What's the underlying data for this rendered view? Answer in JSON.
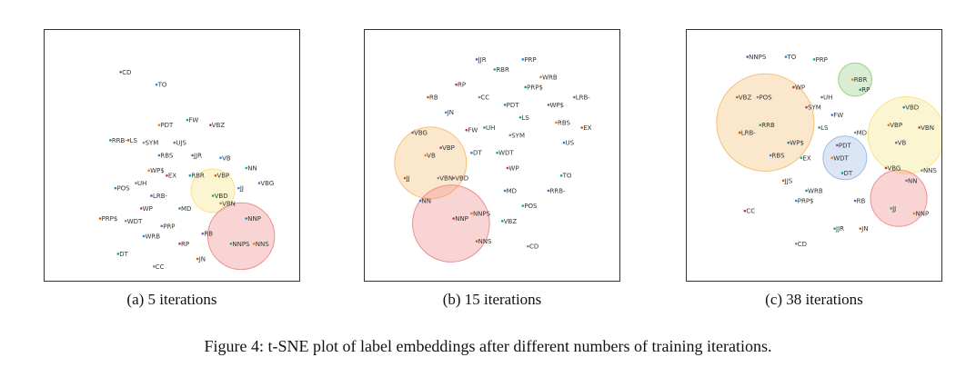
{
  "figure_caption": "Figure 4:  t-SNE plot of label embeddings after different numbers of training iterations.",
  "colors": {
    "orange": "#f4c07a",
    "yellow": "#f7e48a",
    "red": "#ef8f8f",
    "green": "#9ccf8a",
    "blue": "#9dbde8",
    "frame": "#333333"
  },
  "chart_data": [
    {
      "type": "scatter",
      "caption": "(a) 5 iterations",
      "xlim": [
        0,
        100
      ],
      "ylim": [
        0,
        100
      ],
      "grid": false,
      "points": [
        {
          "label": "CD",
          "x": 30,
          "y": 83
        },
        {
          "label": "TO",
          "x": 44,
          "y": 78
        },
        {
          "label": "FW",
          "x": 56,
          "y": 64
        },
        {
          "label": "PDT",
          "x": 45,
          "y": 62
        },
        {
          "label": "VBZ",
          "x": 65,
          "y": 62
        },
        {
          "label": "RRB-",
          "x": 26,
          "y": 56
        },
        {
          "label": "LS",
          "x": 33,
          "y": 56
        },
        {
          "label": "SYM",
          "x": 39,
          "y": 55
        },
        {
          "label": "UJS",
          "x": 51,
          "y": 55
        },
        {
          "label": "RBS",
          "x": 45,
          "y": 50
        },
        {
          "label": "JJR",
          "x": 58,
          "y": 50
        },
        {
          "label": "VB",
          "x": 69,
          "y": 49
        },
        {
          "label": "NN",
          "x": 79,
          "y": 45
        },
        {
          "label": "WP$",
          "x": 41,
          "y": 44
        },
        {
          "label": "EX",
          "x": 48,
          "y": 42
        },
        {
          "label": "RBR",
          "x": 57,
          "y": 42
        },
        {
          "label": "VBP",
          "x": 67,
          "y": 42
        },
        {
          "label": "UH",
          "x": 36,
          "y": 39
        },
        {
          "label": "VBG",
          "x": 84,
          "y": 39
        },
        {
          "label": "POS",
          "x": 28,
          "y": 37
        },
        {
          "label": "LRB-",
          "x": 42,
          "y": 34
        },
        {
          "label": "JJ",
          "x": 76,
          "y": 37
        },
        {
          "label": "VBD",
          "x": 66,
          "y": 34
        },
        {
          "label": "VBN",
          "x": 69,
          "y": 31
        },
        {
          "label": "WP",
          "x": 38,
          "y": 29
        },
        {
          "label": "MD",
          "x": 53,
          "y": 29
        },
        {
          "label": "PRP$",
          "x": 22,
          "y": 25
        },
        {
          "label": "WDT",
          "x": 32,
          "y": 24
        },
        {
          "label": "PRP",
          "x": 46,
          "y": 22
        },
        {
          "label": "NNP",
          "x": 79,
          "y": 25
        },
        {
          "label": "RB",
          "x": 62,
          "y": 19
        },
        {
          "label": "WRB",
          "x": 39,
          "y": 18
        },
        {
          "label": "NNPS",
          "x": 73,
          "y": 15
        },
        {
          "label": "NNS",
          "x": 82,
          "y": 15
        },
        {
          "label": "RP",
          "x": 53,
          "y": 15
        },
        {
          "label": "DT",
          "x": 29,
          "y": 11
        },
        {
          "label": "JN",
          "x": 60,
          "y": 9
        },
        {
          "label": "CC",
          "x": 43,
          "y": 6
        }
      ],
      "circles": [
        {
          "cx": 66,
          "cy": 36,
          "r": 8.5,
          "color": "yellow"
        },
        {
          "cx": 77,
          "cy": 18,
          "r": 13,
          "color": "red"
        }
      ]
    },
    {
      "type": "scatter",
      "caption": "(b) 15 iterations",
      "xlim": [
        0,
        100
      ],
      "ylim": [
        0,
        100
      ],
      "grid": false,
      "points": [
        {
          "label": "JJR",
          "x": 44,
          "y": 88
        },
        {
          "label": "PRP",
          "x": 62,
          "y": 88
        },
        {
          "label": "RBR",
          "x": 51,
          "y": 84
        },
        {
          "label": "WRB",
          "x": 69,
          "y": 81
        },
        {
          "label": "RP",
          "x": 36,
          "y": 78
        },
        {
          "label": "PRP$",
          "x": 63,
          "y": 77
        },
        {
          "label": "RB",
          "x": 25,
          "y": 73
        },
        {
          "label": "CC",
          "x": 45,
          "y": 73
        },
        {
          "label": "LRB-",
          "x": 82,
          "y": 73
        },
        {
          "label": "PDT",
          "x": 55,
          "y": 70
        },
        {
          "label": "WP$",
          "x": 72,
          "y": 70
        },
        {
          "label": "JN",
          "x": 32,
          "y": 67
        },
        {
          "label": "LS",
          "x": 61,
          "y": 65
        },
        {
          "label": "RBS",
          "x": 75,
          "y": 63
        },
        {
          "label": "FW",
          "x": 40,
          "y": 60
        },
        {
          "label": "UH",
          "x": 47,
          "y": 61
        },
        {
          "label": "EX",
          "x": 85,
          "y": 61
        },
        {
          "label": "SYM",
          "x": 57,
          "y": 58
        },
        {
          "label": "VBG",
          "x": 19,
          "y": 59
        },
        {
          "label": "US",
          "x": 78,
          "y": 55
        },
        {
          "label": "VBP",
          "x": 30,
          "y": 53
        },
        {
          "label": "DT",
          "x": 42,
          "y": 51
        },
        {
          "label": "WDT",
          "x": 52,
          "y": 51
        },
        {
          "label": "VB",
          "x": 24,
          "y": 50
        },
        {
          "label": "WP",
          "x": 56,
          "y": 45
        },
        {
          "label": "TO",
          "x": 77,
          "y": 42
        },
        {
          "label": "JJ",
          "x": 16,
          "y": 41
        },
        {
          "label": "VBN",
          "x": 29,
          "y": 41
        },
        {
          "label": "VBD",
          "x": 35,
          "y": 41
        },
        {
          "label": "MD",
          "x": 55,
          "y": 36
        },
        {
          "label": "RRB-",
          "x": 72,
          "y": 36
        },
        {
          "label": "NN",
          "x": 22,
          "y": 32
        },
        {
          "label": "POS",
          "x": 62,
          "y": 30
        },
        {
          "label": "NNPS",
          "x": 42,
          "y": 27
        },
        {
          "label": "NNP",
          "x": 35,
          "y": 25
        },
        {
          "label": "VBZ",
          "x": 54,
          "y": 24
        },
        {
          "label": "NNS",
          "x": 44,
          "y": 16
        },
        {
          "label": "CD",
          "x": 64,
          "y": 14
        }
      ],
      "circles": [
        {
          "cx": 26,
          "cy": 47,
          "r": 14,
          "color": "orange"
        },
        {
          "cx": 34,
          "cy": 23,
          "r": 15,
          "color": "red"
        }
      ]
    },
    {
      "type": "scatter",
      "caption": "(c) 38 iterations",
      "xlim": [
        0,
        100
      ],
      "ylim": [
        0,
        100
      ],
      "grid": false,
      "points": [
        {
          "label": "NNPS",
          "x": 24,
          "y": 89
        },
        {
          "label": "TO",
          "x": 39,
          "y": 89
        },
        {
          "label": "PRP",
          "x": 50,
          "y": 88
        },
        {
          "label": "RBR",
          "x": 65,
          "y": 80
        },
        {
          "label": "WP",
          "x": 42,
          "y": 77
        },
        {
          "label": "RP",
          "x": 68,
          "y": 76
        },
        {
          "label": "VBZ",
          "x": 20,
          "y": 73
        },
        {
          "label": "POS",
          "x": 28,
          "y": 73
        },
        {
          "label": "UH",
          "x": 53,
          "y": 73
        },
        {
          "label": "VBD",
          "x": 85,
          "y": 69
        },
        {
          "label": "SYM",
          "x": 47,
          "y": 69
        },
        {
          "label": "FW",
          "x": 57,
          "y": 66
        },
        {
          "label": "RRB",
          "x": 29,
          "y": 62
        },
        {
          "label": "VBP",
          "x": 79,
          "y": 62
        },
        {
          "label": "VBN",
          "x": 91,
          "y": 61
        },
        {
          "label": "LS",
          "x": 52,
          "y": 61
        },
        {
          "label": "LRB-",
          "x": 21,
          "y": 59
        },
        {
          "label": "MD",
          "x": 66,
          "y": 59
        },
        {
          "label": "VB",
          "x": 82,
          "y": 55
        },
        {
          "label": "WP$",
          "x": 40,
          "y": 55
        },
        {
          "label": "PDT",
          "x": 59,
          "y": 54
        },
        {
          "label": "RBS",
          "x": 33,
          "y": 50
        },
        {
          "label": "EX",
          "x": 45,
          "y": 49
        },
        {
          "label": "WDT",
          "x": 57,
          "y": 49
        },
        {
          "label": "VBG",
          "x": 78,
          "y": 45
        },
        {
          "label": "DT",
          "x": 61,
          "y": 43
        },
        {
          "label": "JJS",
          "x": 38,
          "y": 40
        },
        {
          "label": "NNS",
          "x": 92,
          "y": 44
        },
        {
          "label": "NN",
          "x": 86,
          "y": 40
        },
        {
          "label": "WRB",
          "x": 47,
          "y": 36
        },
        {
          "label": "RB",
          "x": 66,
          "y": 32
        },
        {
          "label": "PRP$",
          "x": 43,
          "y": 32
        },
        {
          "label": "JJ",
          "x": 80,
          "y": 29
        },
        {
          "label": "NNP",
          "x": 89,
          "y": 27
        },
        {
          "label": "CC",
          "x": 23,
          "y": 28
        },
        {
          "label": "JJR",
          "x": 58,
          "y": 21
        },
        {
          "label": "JN",
          "x": 68,
          "y": 21
        },
        {
          "label": "CD",
          "x": 43,
          "y": 15
        }
      ],
      "circles": [
        {
          "cx": 31,
          "cy": 63,
          "r": 19,
          "color": "orange"
        },
        {
          "cx": 66,
          "cy": 80,
          "r": 6.5,
          "color": "green"
        },
        {
          "cx": 86,
          "cy": 58,
          "r": 15,
          "color": "yellow"
        },
        {
          "cx": 62,
          "cy": 49,
          "r": 8.5,
          "color": "blue"
        },
        {
          "cx": 83,
          "cy": 33,
          "r": 11,
          "color": "red"
        }
      ]
    }
  ]
}
